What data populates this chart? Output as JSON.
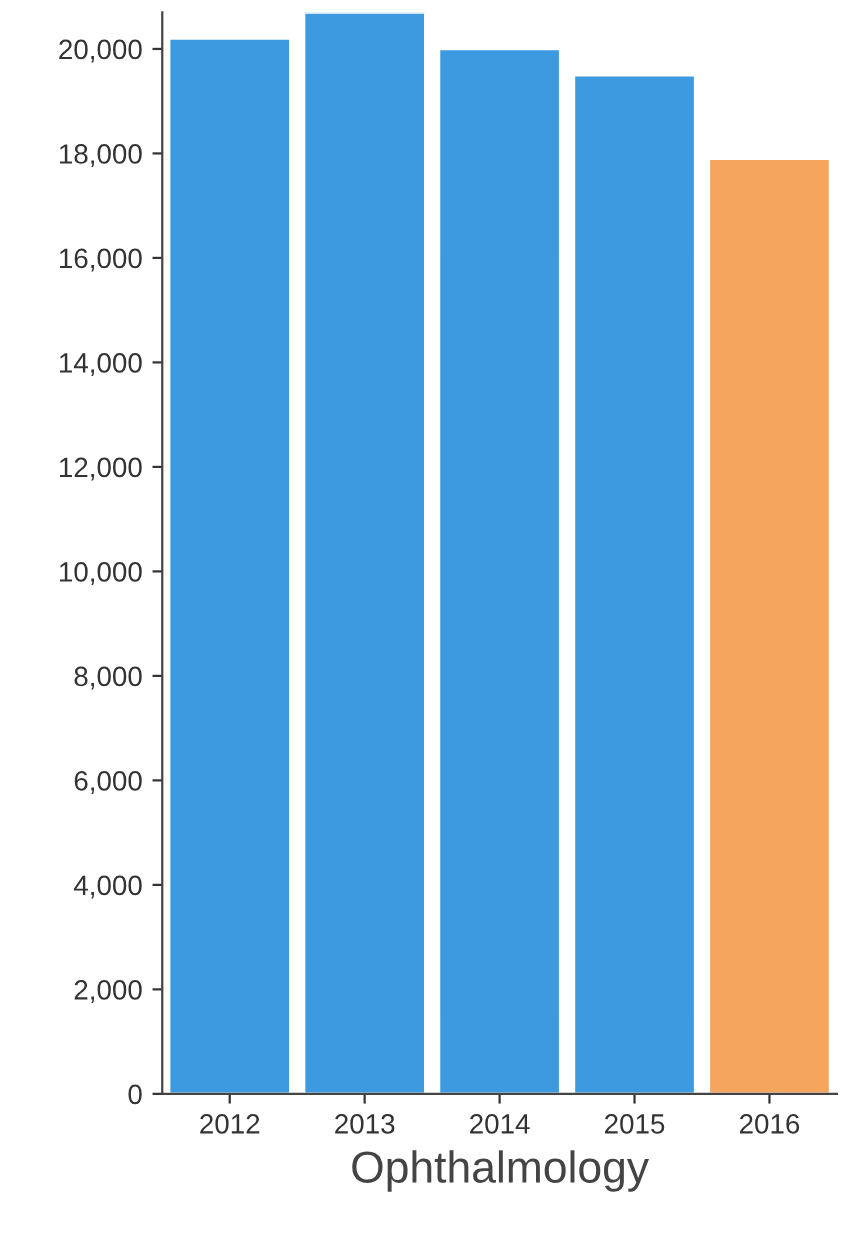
{
  "chart_data": {
    "type": "bar",
    "xlabel": "Ophthalmology",
    "categories": [
      "2012",
      "2013",
      "2014",
      "2015",
      "2016"
    ],
    "values": [
      20200,
      20700,
      20000,
      19500,
      17900
    ],
    "colors": [
      "#3d9ae0",
      "#3d9ae0",
      "#3d9ae0",
      "#3d9ae0",
      "#f5a55e"
    ],
    "ylim": [
      0,
      20700
    ],
    "yticks": [
      {
        "value": 0,
        "label": "0"
      },
      {
        "value": 2000,
        "label": "2,000"
      },
      {
        "value": 4000,
        "label": "4,000"
      },
      {
        "value": 6000,
        "label": "6,000"
      },
      {
        "value": 8000,
        "label": "8,000"
      },
      {
        "value": 10000,
        "label": "10,000"
      },
      {
        "value": 12000,
        "label": "12,000"
      },
      {
        "value": 14000,
        "label": "14,000"
      },
      {
        "value": 16000,
        "label": "16,000"
      },
      {
        "value": 18000,
        "label": "18,000"
      },
      {
        "value": 20000,
        "label": "20,000"
      }
    ],
    "grid": false,
    "legend": false
  }
}
